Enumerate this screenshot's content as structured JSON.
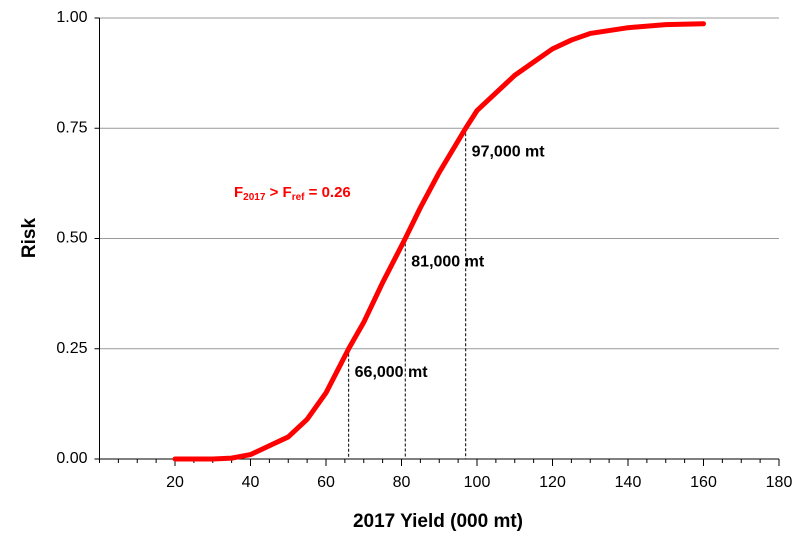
{
  "chart_data": {
    "type": "line",
    "xlabel": "2017 Yield (000 mt)",
    "ylabel": "Risk",
    "x": [
      20,
      30,
      35,
      40,
      45,
      50,
      55,
      60,
      63,
      66,
      70,
      75,
      81,
      85,
      90,
      97,
      100,
      105,
      110,
      115,
      120,
      125,
      130,
      140,
      150,
      160
    ],
    "values": [
      0,
      0,
      0.002,
      0.01,
      0.03,
      0.05,
      0.09,
      0.15,
      0.2,
      0.25,
      0.31,
      0.4,
      0.5,
      0.57,
      0.65,
      0.75,
      0.79,
      0.83,
      0.87,
      0.9,
      0.93,
      0.95,
      0.965,
      0.978,
      0.985,
      0.987
    ],
    "color": "#ff0000",
    "xlim": [
      0,
      180
    ],
    "xticks": [
      20,
      40,
      60,
      80,
      100,
      120,
      140,
      160,
      180
    ],
    "ylim": [
      0,
      1
    ],
    "yticks": [
      {
        "value": 0,
        "label": "0.00"
      },
      {
        "value": 0.25,
        "label": "0.25"
      },
      {
        "value": 0.5,
        "label": "0.50"
      },
      {
        "value": 0.75,
        "label": "0.75"
      },
      {
        "value": 1,
        "label": "1.00"
      }
    ],
    "grid": true,
    "markers": [
      {
        "x": 66,
        "risk": 0.25,
        "label": "66,000 mt"
      },
      {
        "x": 81,
        "risk": 0.5,
        "label": "81,000 mt"
      },
      {
        "x": 97,
        "risk": 0.75,
        "label": "97,000 mt"
      }
    ],
    "annotation": {
      "f1": "F",
      "sub1": "2017",
      "mid": " > F",
      "sub2": "ref",
      "tail": " =  0.26"
    }
  }
}
